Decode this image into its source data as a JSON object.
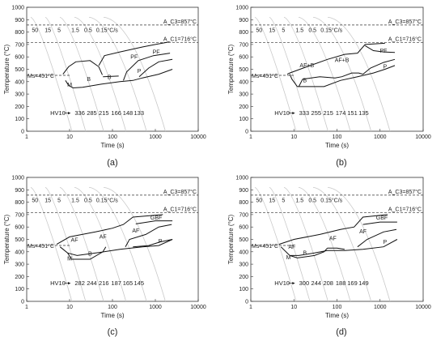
{
  "chart_data": [
    {
      "type": "line",
      "panel": "(a)",
      "xscale": "log",
      "xlim": [
        1,
        10000
      ],
      "ylim": [
        0,
        1000
      ],
      "xticks": [
        "1",
        "10",
        "100",
        "1000",
        "10000"
      ],
      "yticks": [
        "0",
        "100",
        "200",
        "300",
        "400",
        "500",
        "600",
        "700",
        "800",
        "900",
        "1000"
      ],
      "xlabel": "Time (s)",
      "ylabel": "Temperature (°C)",
      "ac3": "A_C3=857°C",
      "ac1": "A_C1=716°C",
      "ms": "Ms=451°C",
      "ac3_value": 857,
      "ac1_value": 716,
      "ms_value": 451,
      "cooling_rates": [
        "50",
        "15",
        "5",
        "1.5",
        "0.5",
        "0.15°C/s"
      ],
      "hv_label": "HV10",
      "hardness": [
        "336",
        "285",
        "215",
        "166",
        "148",
        "133"
      ],
      "phases": [
        {
          "label": "M",
          "x": 10,
          "y": 360
        },
        {
          "label": "B",
          "x": 28,
          "y": 405
        },
        {
          "label": "B",
          "x": 85,
          "y": 420
        },
        {
          "label": "PF",
          "x": 320,
          "y": 585
        },
        {
          "label": "PF",
          "x": 1050,
          "y": 625
        },
        {
          "label": "P",
          "x": 420,
          "y": 470
        }
      ],
      "boundaries": [
        [
          [
            7,
            460
          ],
          [
            9.5,
            520
          ],
          [
            14,
            560
          ],
          [
            30,
            570
          ],
          [
            48,
            520
          ],
          [
            58,
            455
          ]
        ],
        [
          [
            8,
            410
          ],
          [
            9.5,
            370
          ],
          [
            12,
            350
          ],
          [
            20,
            355
          ],
          [
            55,
            380
          ],
          [
            150,
            400
          ],
          [
            300,
            410
          ],
          [
            500,
            430
          ],
          [
            1200,
            460
          ],
          [
            2500,
            500
          ]
        ],
        [
          [
            48,
            530
          ],
          [
            65,
            610
          ],
          [
            150,
            640
          ],
          [
            500,
            680
          ],
          [
            1000,
            700
          ],
          [
            2100,
            720
          ]
        ],
        [
          [
            180,
            410
          ],
          [
            215,
            480
          ],
          [
            400,
            570
          ],
          [
            900,
            610
          ],
          [
            2200,
            630
          ]
        ],
        [
          [
            420,
            440
          ],
          [
            700,
            510
          ],
          [
            1200,
            560
          ],
          [
            2500,
            580
          ]
        ],
        [
          [
            60,
            440
          ],
          [
            140,
            445
          ]
        ]
      ]
    },
    {
      "type": "line",
      "panel": "(b)",
      "xscale": "log",
      "xlim": [
        1,
        10000
      ],
      "ylim": [
        0,
        1000
      ],
      "xticks": [
        "1",
        "10",
        "100",
        "1000",
        "10000"
      ],
      "yticks": [
        "0",
        "100",
        "200",
        "300",
        "400",
        "500",
        "600",
        "700",
        "800",
        "900",
        "1000"
      ],
      "xlabel": "Time (s)",
      "ylabel": "Temperature (°C)",
      "ac3": "A_C3=857°C",
      "ac1": "A_C1=716°C",
      "ms": "Ms=451°C",
      "ac3_value": 857,
      "ac1_value": 716,
      "ms_value": 451,
      "cooling_rates": [
        "50",
        "15",
        "5",
        "1.5",
        "0.5",
        "0.15°C/s"
      ],
      "hv_label": "HV10",
      "hardness": [
        "333",
        "255",
        "215",
        "174",
        "151",
        "135"
      ],
      "phases": [
        {
          "label": "AF+B",
          "x": 20,
          "y": 515
        },
        {
          "label": "AF+B",
          "x": 130,
          "y": 560
        },
        {
          "label": "B",
          "x": 18,
          "y": 395
        },
        {
          "label": "PF",
          "x": 1200,
          "y": 635
        },
        {
          "label": "P",
          "x": 1300,
          "y": 505
        }
      ],
      "boundaries": [
        [
          [
            7,
            460
          ],
          [
            8,
            470
          ],
          [
            20,
            520
          ],
          [
            60,
            580
          ],
          [
            150,
            620
          ],
          [
            300,
            630
          ],
          [
            450,
            700
          ],
          [
            1300,
            710
          ]
        ],
        [
          [
            8,
            460
          ],
          [
            9,
            420
          ],
          [
            12,
            360
          ],
          [
            50,
            360
          ],
          [
            120,
            410
          ],
          [
            300,
            440
          ],
          [
            700,
            470
          ],
          [
            1300,
            500
          ],
          [
            2200,
            530
          ]
        ],
        [
          [
            13,
            360
          ],
          [
            16,
            420
          ],
          [
            40,
            440
          ],
          [
            90,
            430
          ],
          [
            130,
            440
          ],
          [
            220,
            470
          ],
          [
            320,
            470
          ],
          [
            400,
            460
          ]
        ],
        [
          [
            400,
            460
          ],
          [
            600,
            510
          ],
          [
            1200,
            555
          ],
          [
            2200,
            580
          ]
        ],
        [
          [
            450,
            690
          ],
          [
            700,
            650
          ],
          [
            1200,
            640
          ],
          [
            2200,
            635
          ]
        ]
      ]
    },
    {
      "type": "line",
      "panel": "(c)",
      "xscale": "log",
      "xlim": [
        1,
        10000
      ],
      "ylim": [
        0,
        1000
      ],
      "xticks": [
        "1",
        "10",
        "100",
        "1000",
        "10000"
      ],
      "yticks": [
        "0",
        "100",
        "200",
        "300",
        "400",
        "500",
        "600",
        "700",
        "800",
        "900",
        "1000"
      ],
      "xlabel": "Time (s)",
      "ylabel": "Temperature (°C)",
      "ac3": "A_C3=857°C",
      "ac1": "A_C1=716°C",
      "ms": "Ms=451°C",
      "ac3_value": 857,
      "ac1_value": 716,
      "ms_value": 451,
      "cooling_rates": [
        "50",
        "15",
        "5",
        "1.5",
        "0.5",
        "0.15°C/s"
      ],
      "hv_label": "HV10",
      "hardness": [
        "282",
        "244",
        "216",
        "187",
        "165",
        "145"
      ],
      "phases": [
        {
          "label": "AF",
          "x": 13,
          "y": 480
        },
        {
          "label": "AF",
          "x": 60,
          "y": 505
        },
        {
          "label": "AF",
          "x": 350,
          "y": 555
        },
        {
          "label": "B",
          "x": 30,
          "y": 370
        },
        {
          "label": "M",
          "x": 10,
          "y": 330
        },
        {
          "label": "P",
          "x": 1300,
          "y": 470
        },
        {
          "label": "GBF",
          "x": 1050,
          "y": 660
        }
      ],
      "boundaries": [
        [
          [
            5,
            460
          ],
          [
            10,
            520
          ],
          [
            40,
            560
          ],
          [
            100,
            590
          ],
          [
            180,
            620
          ],
          [
            300,
            680
          ],
          [
            1500,
            700
          ]
        ],
        [
          [
            6,
            440
          ],
          [
            9,
            390
          ],
          [
            15,
            370
          ],
          [
            50,
            395
          ],
          [
            150,
            420
          ],
          [
            500,
            440
          ],
          [
            1200,
            450
          ],
          [
            2500,
            500
          ]
        ],
        [
          [
            9,
            390
          ],
          [
            11,
            340
          ],
          [
            30,
            340
          ],
          [
            60,
            400
          ],
          [
            70,
            440
          ]
        ],
        [
          [
            200,
            440
          ],
          [
            250,
            500
          ],
          [
            600,
            540
          ],
          [
            1200,
            600
          ],
          [
            2400,
            620
          ]
        ],
        [
          [
            350,
            625
          ],
          [
            1000,
            650
          ],
          [
            2500,
            650
          ]
        ],
        [
          [
            300,
            440
          ],
          [
            700,
            450
          ],
          [
            1300,
            480
          ],
          [
            2500,
            500
          ]
        ]
      ]
    },
    {
      "type": "line",
      "panel": "(d)",
      "xscale": "log",
      "xlim": [
        1,
        10000
      ],
      "ylim": [
        0,
        1000
      ],
      "xticks": [
        "1",
        "10",
        "100",
        "1000",
        "10000"
      ],
      "yticks": [
        "0",
        "100",
        "200",
        "300",
        "400",
        "500",
        "600",
        "700",
        "800",
        "900",
        "1000"
      ],
      "xlabel": "Time (s)",
      "ylabel": "Temperature (°C)",
      "ac3": "A_C3=857°C",
      "ac1": "A_C1=716°C",
      "ms": "Ms=451°C",
      "ac3_value": 857,
      "ac1_value": 716,
      "ms_value": 451,
      "cooling_rates": [
        "50",
        "15",
        "5",
        "1.5",
        "0.5",
        "0.15°C/s"
      ],
      "hv_label": "HV10",
      "hardness": [
        "300",
        "244",
        "208",
        "188",
        "169",
        "149"
      ],
      "phases": [
        {
          "label": "AF",
          "x": 9,
          "y": 425
        },
        {
          "label": "AF",
          "x": 80,
          "y": 495
        },
        {
          "label": "AF",
          "x": 400,
          "y": 550
        },
        {
          "label": "B",
          "x": 18,
          "y": 375
        },
        {
          "label": "M",
          "x": 7.5,
          "y": 340
        },
        {
          "label": "P",
          "x": 1300,
          "y": 465
        },
        {
          "label": "GBF",
          "x": 1100,
          "y": 660
        }
      ],
      "boundaries": [
        [
          [
            4.5,
            460
          ],
          [
            10,
            500
          ],
          [
            40,
            540
          ],
          [
            120,
            580
          ],
          [
            250,
            600
          ],
          [
            400,
            680
          ],
          [
            1500,
            700
          ]
        ],
        [
          [
            5,
            440
          ],
          [
            8,
            370
          ],
          [
            13,
            370
          ],
          [
            30,
            390
          ],
          [
            60,
            410
          ],
          [
            150,
            410
          ],
          [
            400,
            420
          ],
          [
            1200,
            440
          ],
          [
            2500,
            500
          ]
        ],
        [
          [
            8,
            370
          ],
          [
            12,
            350
          ],
          [
            30,
            370
          ],
          [
            50,
            400
          ],
          [
            60,
            430
          ]
        ],
        [
          [
            300,
            440
          ],
          [
            500,
            500
          ],
          [
            1200,
            560
          ],
          [
            2400,
            580
          ]
        ],
        [
          [
            400,
            620
          ],
          [
            1000,
            640
          ],
          [
            2500,
            640
          ]
        ],
        [
          [
            60,
            430
          ],
          [
            100,
            430
          ],
          [
            150,
            420
          ]
        ]
      ]
    }
  ]
}
